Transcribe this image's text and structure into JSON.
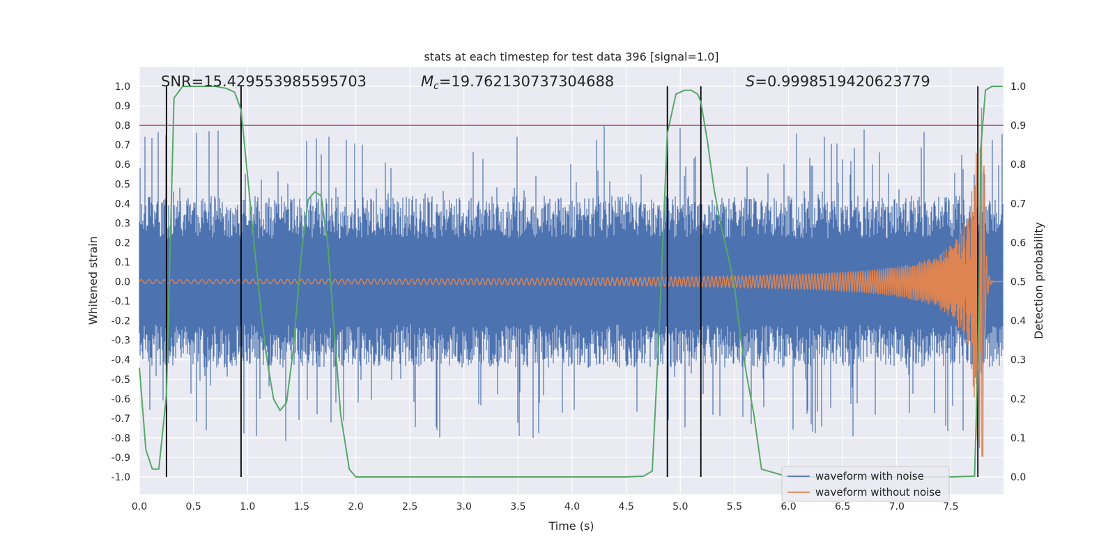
{
  "chart_data": {
    "type": "line",
    "title": "stats at each timestep for test data 396 [signal=1.0]",
    "xlabel": "Time (s)",
    "ylabel": "Whitened strain",
    "y2label": "Detection probability",
    "xlim": [
      0.0,
      8.0
    ],
    "ylim": [
      -1.1,
      1.05
    ],
    "y2lim": [
      -0.05,
      1.03
    ],
    "xticks": [
      "0.0",
      "0.5",
      "1.0",
      "1.5",
      "2.0",
      "2.5",
      "3.0",
      "3.5",
      "4.0",
      "4.5",
      "5.0",
      "5.5",
      "6.0",
      "6.5",
      "7.0",
      "7.5"
    ],
    "yticks": [
      "1.0",
      "0.9",
      "0.8",
      "0.7",
      "0.6",
      "0.5",
      "0.4",
      "0.3",
      "0.2",
      "0.1",
      "0.0",
      "-0.1",
      "-0.2",
      "-0.3",
      "-0.4",
      "-0.5",
      "-0.6",
      "-0.7",
      "-0.8",
      "-0.9",
      "-1.0"
    ],
    "y2ticks": [
      "1.0",
      "0.9",
      "0.8",
      "0.7",
      "0.6",
      "0.5",
      "0.4",
      "0.3",
      "0.2",
      "0.1",
      "0.0"
    ],
    "annotations": {
      "snr": "SNR=15.429553985595703",
      "mc_symbol": "M",
      "mc_subscript": "c",
      "mc_value": "=19.762130737304688",
      "s_symbol": "S",
      "s_value": "=0.9998519420623779"
    },
    "threshold_y2": 0.9,
    "threshold_color": "#c44e52",
    "vertical_markers_x": [
      0.25,
      0.94,
      4.88,
      5.19,
      7.75
    ],
    "series": [
      {
        "name": "waveform with noise",
        "color": "#4c72b0",
        "type": "noise-envelope",
        "typical_amplitude": 0.4,
        "peak_amplitude": 0.82
      },
      {
        "name": "waveform without noise",
        "color": "#dd8452",
        "type": "chirp",
        "merger_time": 7.8,
        "initial_amplitude": 0.01,
        "peak_amplitude": 0.9
      },
      {
        "name": "detection probability",
        "color": "#55a868",
        "axis": "y2",
        "x": [
          0.0,
          0.06,
          0.12,
          0.18,
          0.25,
          0.32,
          0.4,
          0.5,
          0.6,
          0.7,
          0.8,
          0.88,
          0.94,
          1.0,
          1.07,
          1.13,
          1.18,
          1.24,
          1.3,
          1.36,
          1.42,
          1.5,
          1.56,
          1.62,
          1.68,
          1.74,
          1.8,
          1.86,
          1.94,
          2.0,
          2.5,
          3.0,
          3.5,
          4.0,
          4.5,
          4.66,
          4.74,
          4.8,
          4.88,
          4.96,
          5.04,
          5.1,
          5.16,
          5.19,
          5.25,
          5.31,
          5.37,
          5.43,
          5.5,
          5.56,
          5.62,
          5.68,
          5.75,
          6.0,
          6.5,
          7.0,
          7.5,
          7.72,
          7.75,
          7.78,
          7.82,
          7.88,
          7.94,
          7.98
        ],
        "values": [
          0.28,
          0.07,
          0.02,
          0.02,
          0.21,
          0.97,
          1.0,
          1.0,
          1.0,
          1.0,
          0.995,
          0.985,
          0.94,
          0.77,
          0.57,
          0.41,
          0.3,
          0.2,
          0.17,
          0.19,
          0.32,
          0.58,
          0.71,
          0.73,
          0.72,
          0.6,
          0.38,
          0.16,
          0.02,
          0.0,
          0.0,
          0.0,
          0.0,
          0.0,
          0.0,
          0.002,
          0.015,
          0.35,
          0.88,
          0.98,
          0.99,
          0.99,
          0.98,
          0.96,
          0.86,
          0.74,
          0.65,
          0.58,
          0.49,
          0.35,
          0.25,
          0.16,
          0.02,
          0.0,
          0.0,
          0.0,
          0.0,
          0.002,
          0.3,
          0.85,
          0.99,
          1.0,
          1.0,
          1.0
        ]
      }
    ],
    "legend": {
      "position": "lower-right",
      "entries": [
        {
          "label": "waveform with noise",
          "color": "#4c72b0"
        },
        {
          "label": "waveform without noise",
          "color": "#dd8452"
        }
      ]
    }
  }
}
